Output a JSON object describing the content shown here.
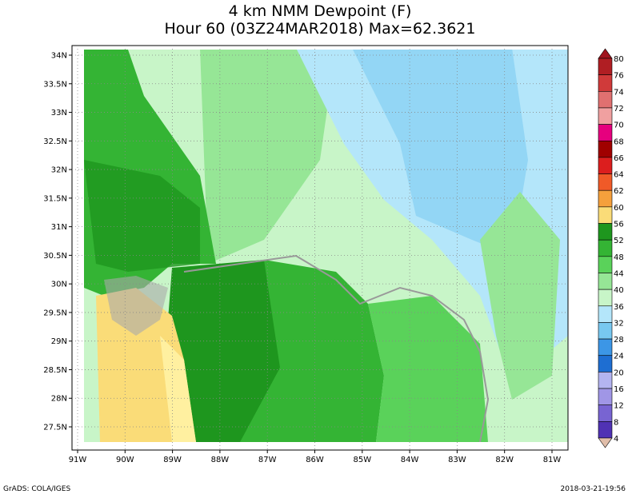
{
  "title": {
    "line1": "4 km NMM Dewpoint (F)",
    "line2": "Hour 60 (03Z24MAR2018) Max=62.3621"
  },
  "map": {
    "lat_labels": [
      "34N",
      "33.5N",
      "33N",
      "32.5N",
      "32N",
      "31.5N",
      "31N",
      "30.5N",
      "30N",
      "29.5N",
      "29N",
      "28.5N",
      "28N",
      "27.5N"
    ],
    "lon_labels": [
      "91W",
      "90W",
      "89W",
      "88W",
      "87W",
      "86W",
      "85W",
      "84W",
      "83W",
      "82W",
      "81W"
    ]
  },
  "colorbar": {
    "top_color": "#a0141e",
    "levels": [
      {
        "label": "80",
        "color": "#b01e23"
      },
      {
        "label": "76",
        "color": "#d03a3a"
      },
      {
        "label": "74",
        "color": "#e07070"
      },
      {
        "label": "72",
        "color": "#f0a0a0"
      },
      {
        "label": "70",
        "color": "#e6007e"
      },
      {
        "label": "68",
        "color": "#a00000"
      },
      {
        "label": "66",
        "color": "#dc1e1e"
      },
      {
        "label": "64",
        "color": "#f05a28"
      },
      {
        "label": "62",
        "color": "#f5a03c"
      },
      {
        "label": "60",
        "color": "#fadc78"
      },
      {
        "label": "56",
        "color": "#1e961e"
      },
      {
        "label": "52",
        "color": "#34b434"
      },
      {
        "label": "48",
        "color": "#5ad25a"
      },
      {
        "label": "44",
        "color": "#96e696"
      },
      {
        "label": "40",
        "color": "#c8f5c8"
      },
      {
        "label": "36",
        "color": "#b4e6fa"
      },
      {
        "label": "32",
        "color": "#78c8f0"
      },
      {
        "label": "28",
        "color": "#3c96e6"
      },
      {
        "label": "24",
        "color": "#1e6ed2"
      },
      {
        "label": "20",
        "color": "#b4b4f0"
      },
      {
        "label": "16",
        "color": "#a096e6"
      },
      {
        "label": "12",
        "color": "#7864d2"
      },
      {
        "label": "8",
        "color": "#5032b4"
      },
      {
        "label": "4",
        "color": "#e1beaa"
      }
    ]
  },
  "footer": {
    "left": "GrADS: COLA/IGES",
    "right": "2018-03-21-19:56"
  }
}
